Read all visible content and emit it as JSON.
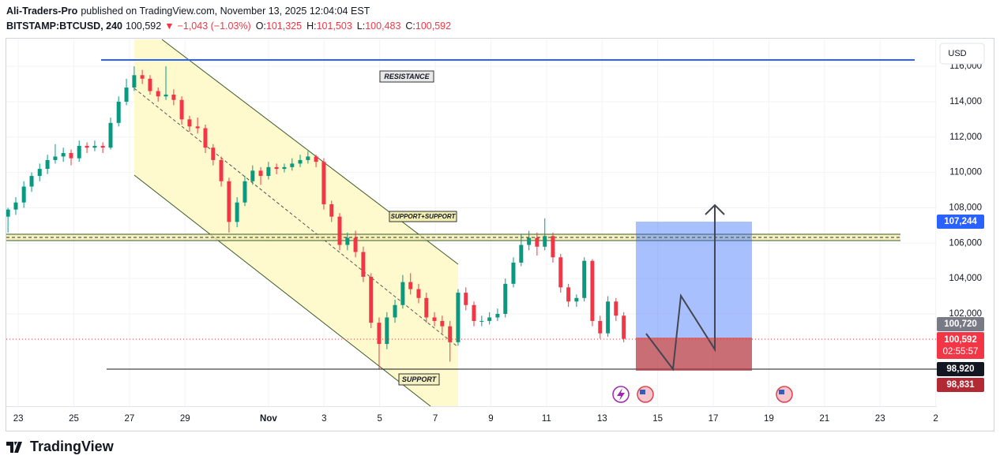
{
  "header": {
    "author": "Ali-Traders-Pro",
    "published": "published on TradingView.com, November 13, 2025 12:04:04 EST",
    "symbol": "BITSTAMP:BTCUSD, 240",
    "price": "100,592",
    "arrow": "▼",
    "change": "−1,043 (−1.03%)",
    "ohlc": [
      {
        "key": "O:",
        "value": "101,325"
      },
      {
        "key": "H:",
        "value": "101,503"
      },
      {
        "key": "L:",
        "value": "100,483"
      },
      {
        "key": "C:",
        "value": "100,592"
      }
    ]
  },
  "footer": {
    "logo": "TradingView"
  },
  "annotations": {
    "resistance": "RESISTANCE",
    "zone": "SUPPORT+SUPPORT",
    "support": "SUPPORT",
    "currency": "USD",
    "countdown": "02:55:57"
  },
  "price_labels": [
    {
      "value": 107244,
      "label": "107,244",
      "color": "#2962ff"
    },
    {
      "value": 100720,
      "label": "100,720",
      "color": "#787b86"
    },
    {
      "value": 100592,
      "label": "100,592",
      "color": "#f23645"
    },
    {
      "value": 98920,
      "label": "98,920",
      "color": "#131722"
    },
    {
      "value": 98831,
      "label": "98,831",
      "color": "#b22833"
    }
  ],
  "chart_data": {
    "type": "candlestick",
    "up_color": "#089981",
    "down_color": "#f23645",
    "xlim": [
      -0.43,
      33.04
    ],
    "ylim": [
      96780,
      117520
    ],
    "xticks": [
      {
        "value": 0,
        "label": "23"
      },
      {
        "value": 2,
        "label": "25"
      },
      {
        "value": 4,
        "label": "27"
      },
      {
        "value": 6,
        "label": "29"
      },
      {
        "value": 9,
        "label": "Nov"
      },
      {
        "value": 11,
        "label": "3"
      },
      {
        "value": 13,
        "label": "5"
      },
      {
        "value": 15,
        "label": "7"
      },
      {
        "value": 17,
        "label": "9"
      },
      {
        "value": 19,
        "label": "11"
      },
      {
        "value": 21,
        "label": "13"
      },
      {
        "value": 23,
        "label": "15"
      },
      {
        "value": 25,
        "label": "17"
      },
      {
        "value": 27,
        "label": "19"
      },
      {
        "value": 29,
        "label": "21"
      },
      {
        "value": 31,
        "label": "23"
      },
      {
        "value": 33,
        "label": "2"
      }
    ],
    "yticks": [
      {
        "value": 102000,
        "label": "102,000"
      },
      {
        "value": 104000,
        "label": "104,000"
      },
      {
        "value": 106000,
        "label": "106,000"
      },
      {
        "value": 108000,
        "label": "108,000"
      },
      {
        "value": 110000,
        "label": "110,000"
      },
      {
        "value": 112000,
        "label": "112,000"
      },
      {
        "value": 114000,
        "label": "114,000"
      },
      {
        "value": 116000,
        "label": "116,000"
      }
    ],
    "x": [
      -0.37,
      -0.09,
      0.2,
      0.48,
      0.77,
      1.05,
      1.33,
      1.62,
      1.9,
      2.19,
      2.47,
      2.75,
      3.04,
      3.32,
      3.61,
      3.89,
      4.17,
      4.46,
      4.74,
      5.03,
      5.31,
      5.59,
      5.88,
      6.16,
      6.45,
      6.73,
      7.01,
      7.3,
      7.58,
      7.87,
      8.15,
      8.43,
      8.72,
      9.0,
      9.29,
      9.57,
      9.85,
      10.14,
      10.42,
      10.71,
      10.99,
      11.27,
      11.56,
      11.84,
      12.13,
      12.41,
      12.69,
      12.98,
      13.26,
      13.55,
      13.83,
      14.11,
      14.4,
      14.68,
      14.97,
      15.25,
      15.53,
      15.82,
      16.1,
      16.39,
      16.67,
      16.95,
      17.24,
      17.52,
      17.81,
      18.09,
      18.37,
      18.66,
      18.94,
      19.23,
      19.51,
      19.79,
      20.08,
      20.36,
      20.65,
      20.93,
      21.21,
      21.5,
      21.78
    ],
    "ohlc": [
      [
        107500,
        108000,
        106600,
        107900
      ],
      [
        107900,
        108600,
        107600,
        108300
      ],
      [
        108300,
        109500,
        108000,
        109200
      ],
      [
        109200,
        110000,
        108900,
        109800
      ],
      [
        109800,
        110500,
        109500,
        110200
      ],
      [
        110200,
        111000,
        109900,
        110700
      ],
      [
        110700,
        111600,
        110500,
        110900
      ],
      [
        110900,
        111400,
        110600,
        111100
      ],
      [
        111100,
        111300,
        110400,
        110800
      ],
      [
        110800,
        111800,
        110600,
        111500
      ],
      [
        111500,
        111700,
        111100,
        111400
      ],
      [
        111400,
        111800,
        111200,
        111500
      ],
      [
        111500,
        111700,
        111100,
        111400
      ],
      [
        111400,
        113100,
        111300,
        112800
      ],
      [
        112800,
        114300,
        112600,
        114000
      ],
      [
        114000,
        115300,
        113800,
        114800
      ],
      [
        114800,
        116000,
        114600,
        115500
      ],
      [
        115500,
        115800,
        115000,
        115300
      ],
      [
        115300,
        115500,
        114400,
        114600
      ],
      [
        114600,
        114800,
        114000,
        114300
      ],
      [
        114300,
        116000,
        114100,
        114400
      ],
      [
        114400,
        114700,
        113800,
        114100
      ],
      [
        114100,
        114300,
        112700,
        113000
      ],
      [
        113000,
        113200,
        112300,
        112600
      ],
      [
        112600,
        113100,
        112200,
        112500
      ],
      [
        112500,
        112700,
        111100,
        111400
      ],
      [
        111400,
        111600,
        110400,
        110700
      ],
      [
        110700,
        110900,
        109200,
        109500
      ],
      [
        109500,
        109700,
        106600,
        107200
      ],
      [
        107200,
        108600,
        106900,
        108300
      ],
      [
        108300,
        109800,
        108100,
        109500
      ],
      [
        109500,
        110400,
        109300,
        110100
      ],
      [
        110100,
        110300,
        109300,
        109800
      ],
      [
        109800,
        110600,
        109600,
        110300
      ],
      [
        110300,
        110500,
        109900,
        110200
      ],
      [
        110200,
        110500,
        110000,
        110300
      ],
      [
        110300,
        110800,
        110100,
        110500
      ],
      [
        110500,
        111000,
        110300,
        110700
      ],
      [
        110700,
        111200,
        110500,
        110900
      ],
      [
        110900,
        111000,
        110300,
        110600
      ],
      [
        110600,
        110800,
        107900,
        108200
      ],
      [
        108200,
        108400,
        107200,
        107500
      ],
      [
        107500,
        107700,
        105600,
        105900
      ],
      [
        105900,
        106600,
        105600,
        106300
      ],
      [
        106300,
        106700,
        105200,
        105500
      ],
      [
        105500,
        105800,
        103800,
        104100
      ],
      [
        104100,
        104300,
        101200,
        101500
      ],
      [
        101500,
        101800,
        98900,
        100300
      ],
      [
        100300,
        102100,
        100000,
        101800
      ],
      [
        101800,
        102800,
        101500,
        102500
      ],
      [
        102500,
        104200,
        102300,
        103800
      ],
      [
        103800,
        104300,
        103100,
        103400
      ],
      [
        103400,
        103700,
        102600,
        102900
      ],
      [
        102900,
        103200,
        101500,
        101800
      ],
      [
        101800,
        102100,
        101300,
        101600
      ],
      [
        101600,
        101900,
        100900,
        101300
      ],
      [
        101300,
        101600,
        99300,
        100400
      ],
      [
        100400,
        103400,
        100200,
        103200
      ],
      [
        103200,
        103500,
        102200,
        102500
      ],
      [
        102500,
        102700,
        101300,
        101600
      ],
      [
        101600,
        101900,
        101300,
        101600
      ],
      [
        101600,
        102100,
        101400,
        101800
      ],
      [
        101800,
        102300,
        101600,
        102000
      ],
      [
        102000,
        104000,
        101800,
        103700
      ],
      [
        103700,
        105200,
        103500,
        104900
      ],
      [
        104900,
        106500,
        104700,
        105900
      ],
      [
        105900,
        106700,
        105600,
        106300
      ],
      [
        106300,
        106600,
        105300,
        105800
      ],
      [
        105800,
        107400,
        105600,
        106400
      ],
      [
        106400,
        106600,
        104900,
        105200
      ],
      [
        105200,
        105400,
        103200,
        103500
      ],
      [
        103500,
        103700,
        102400,
        102700
      ],
      [
        102700,
        103100,
        102400,
        102900
      ],
      [
        102900,
        105200,
        102700,
        105000
      ],
      [
        105000,
        105100,
        101300,
        101600
      ],
      [
        101600,
        101900,
        100600,
        100900
      ],
      [
        100900,
        103000,
        100700,
        102700
      ],
      [
        102700,
        102900,
        101600,
        101900
      ],
      [
        101900,
        102100,
        100400,
        100592
      ]
    ]
  }
}
